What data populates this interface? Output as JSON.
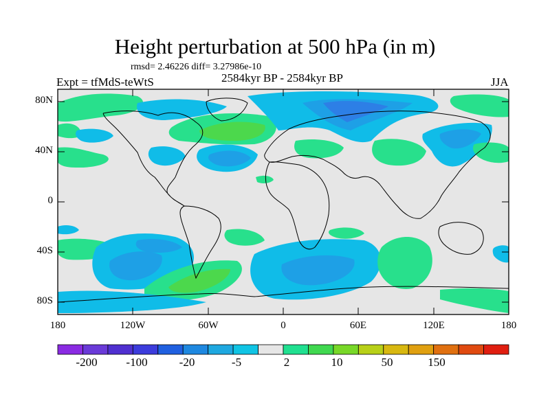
{
  "title": "Height perturbation at 500 hPa (in m)",
  "stats": "rmsd= 2.46226 diff= 3.27986e-10",
  "experiment": "Expt = tfMdS-teWtS",
  "period": "2584kyr BP - 2584kyr BP",
  "season": "JJA",
  "axes": {
    "lat_labels": [
      "80N",
      "40N",
      "0",
      "40S",
      "80S"
    ],
    "lon_labels": [
      "180",
      "120W",
      "60W",
      "0",
      "60E",
      "120E",
      "180"
    ]
  },
  "colorbar": {
    "labels": [
      "-200",
      "-100",
      "-20",
      "-5",
      "2",
      "10",
      "50",
      "150"
    ],
    "colors": [
      "#8a2be2",
      "#6a3ad8",
      "#5030d0",
      "#3c3cdc",
      "#2060e0",
      "#1e88e0",
      "#1ea8e0",
      "#10c4e4",
      "#e6e6e6",
      "#20e090",
      "#40d850",
      "#78d828",
      "#b8d018",
      "#d8b810",
      "#e0a010",
      "#e07010",
      "#e04a10",
      "#e01e10"
    ]
  },
  "map_colors": {
    "background": "#e6e6e6",
    "light_blue": "#10bce8",
    "mid_blue": "#1ea0e6",
    "deep_blue": "#2d7fe6",
    "light_green": "#28e08c",
    "green": "#4cd84c"
  }
}
